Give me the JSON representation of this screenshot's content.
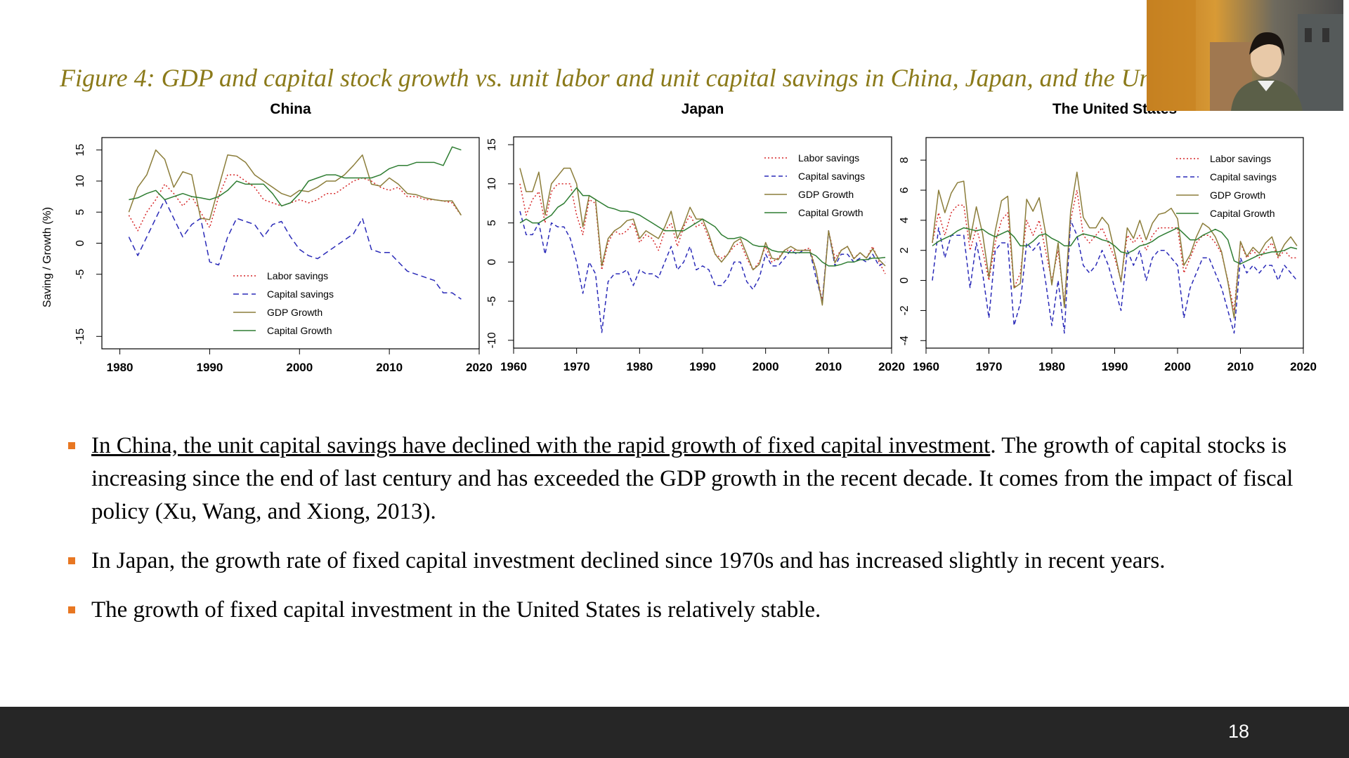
{
  "slide": {
    "title": "Figure 4: GDP and capital stock growth vs. unit labor and unit capital savings in China, Japan, and the Un",
    "page_number": "18",
    "title_color": "#8B7A1A",
    "bullet_color": "#E87722",
    "footer_color": "#262626"
  },
  "bullets": [
    {
      "underlined": "In China, the unit capital savings have declined with the rapid growth of fixed capital investment",
      "rest": ". The growth of capital stocks is increasing since the end of last century and has exceeded the GDP growth in the recent decade. It comes from the impact of fiscal policy (Xu, Wang, and Xiong, 2013)."
    },
    {
      "underlined": "",
      "rest": "In Japan, the growth rate of fixed capital investment declined since 1970s and has increased slightly in recent years."
    },
    {
      "underlined": "",
      "rest": "The growth of fixed capital investment in the United States is relatively stable."
    }
  ],
  "chart_data": [
    {
      "type": "line",
      "title": "China",
      "ylabel": "Saving / Growth (%)",
      "xlim": [
        1978,
        2020
      ],
      "ylim": [
        -17,
        17
      ],
      "xticks": [
        1980,
        1990,
        2000,
        2010,
        2020
      ],
      "yticks": [
        -15,
        -5,
        0,
        5,
        10,
        15
      ],
      "legend_position": "bottom-center",
      "x": [
        1981,
        1982,
        1983,
        1984,
        1985,
        1986,
        1987,
        1988,
        1989,
        1990,
        1991,
        1992,
        1993,
        1994,
        1995,
        1996,
        1997,
        1998,
        1999,
        2000,
        2001,
        2002,
        2003,
        2004,
        2005,
        2006,
        2007,
        2008,
        2009,
        2010,
        2011,
        2012,
        2013,
        2014,
        2015,
        2016,
        2017,
        2018
      ],
      "series": [
        {
          "name": "Labor savings",
          "color": "#d62728",
          "dash": "2,3",
          "values": [
            4.5,
            2,
            5,
            7,
            9.5,
            8,
            6,
            7.5,
            5,
            2.5,
            7.5,
            11,
            11,
            10,
            9,
            7,
            6.5,
            6,
            6.5,
            7,
            6.5,
            7,
            8,
            8,
            9,
            10,
            10.5,
            10,
            9,
            8.5,
            9,
            7.5,
            7.5,
            7,
            7,
            6.8,
            6.5,
            4.5
          ]
        },
        {
          "name": "Capital savings",
          "color": "#2a2ab8",
          "dash": "8,5",
          "values": [
            1,
            -2,
            1,
            4,
            7,
            4,
            1,
            3,
            4,
            -3,
            -3.5,
            1,
            4,
            3.5,
            3,
            1,
            3,
            3.5,
            1,
            -1,
            -2,
            -2.5,
            -1.5,
            -0.5,
            0.5,
            1.5,
            4,
            -1,
            -1.5,
            -1.5,
            -3,
            -4.5,
            -5,
            -5.5,
            -6,
            -8,
            -8,
            -9
          ]
        },
        {
          "name": "GDP Growth",
          "color": "#8B7D3A",
          "dash": "",
          "values": [
            5,
            9,
            11,
            15,
            13.5,
            9,
            11.5,
            11,
            4,
            3.8,
            9,
            14.2,
            14,
            13,
            11,
            10,
            9,
            8,
            7.5,
            8.5,
            8.3,
            9,
            10,
            10,
            11,
            12.5,
            14.2,
            9.5,
            9.2,
            10.5,
            9.5,
            8,
            7.8,
            7.3,
            7,
            6.8,
            6.8,
            4.5
          ]
        },
        {
          "name": "Capital Growth",
          "color": "#2e7d32",
          "dash": "",
          "values": [
            7,
            7.3,
            8,
            8.5,
            7,
            7.5,
            8,
            7.5,
            7.3,
            7,
            7.5,
            8.5,
            10,
            9.5,
            9.5,
            9.5,
            8,
            6,
            6.5,
            8,
            10,
            10.5,
            11,
            11,
            10.5,
            10.5,
            10.5,
            10.5,
            11,
            12,
            12.5,
            12.5,
            13,
            13,
            13,
            12.5,
            15.5,
            15
          ]
        }
      ]
    },
    {
      "type": "line",
      "title": "Japan",
      "xlim": [
        1960,
        2020
      ],
      "ylim": [
        -11,
        16
      ],
      "xticks": [
        1960,
        1970,
        1980,
        1990,
        2000,
        2010,
        2020
      ],
      "yticks": [
        -10,
        -5,
        0,
        5,
        10,
        15
      ],
      "legend_position": "top-right",
      "x": [
        1961,
        1962,
        1963,
        1964,
        1965,
        1966,
        1967,
        1968,
        1969,
        1970,
        1971,
        1972,
        1973,
        1974,
        1975,
        1976,
        1977,
        1978,
        1979,
        1980,
        1981,
        1982,
        1983,
        1984,
        1985,
        1986,
        1987,
        1988,
        1989,
        1990,
        1991,
        1992,
        1993,
        1994,
        1995,
        1996,
        1997,
        1998,
        1999,
        2000,
        2001,
        2002,
        2003,
        2004,
        2005,
        2006,
        2007,
        2008,
        2009,
        2010,
        2011,
        2012,
        2013,
        2014,
        2015,
        2016,
        2017,
        2018,
        2019
      ],
      "series": [
        {
          "name": "Labor savings",
          "color": "#d62728",
          "dash": "2,3",
          "values": [
            10,
            6,
            8,
            9,
            5,
            9,
            10,
            10,
            10,
            6,
            3.5,
            8,
            7.5,
            -1,
            2.5,
            4,
            3.5,
            4,
            5,
            2.5,
            3.5,
            3,
            1.5,
            4,
            5,
            2,
            4.5,
            6,
            4.5,
            5,
            3,
            1,
            0.5,
            1,
            2,
            2.5,
            0.5,
            -1,
            0,
            2,
            0,
            0.5,
            1.5,
            1.5,
            1.5,
            1.5,
            1.8,
            -1,
            -5,
            4,
            0.5,
            1.5,
            2,
            0.5,
            1.2,
            0.5,
            2,
            0,
            -1.5
          ]
        },
        {
          "name": "Capital savings",
          "color": "#2a2ab8",
          "dash": "6,4",
          "values": [
            6.5,
            3.5,
            3.5,
            5,
            1,
            5,
            4.5,
            4.5,
            3,
            0,
            -4,
            0,
            -1.5,
            -9,
            -2.5,
            -1.5,
            -1.5,
            -1,
            -3,
            -1,
            -1.5,
            -1.5,
            -2,
            0,
            2,
            -1,
            0,
            2,
            -1,
            -0.5,
            -1,
            -3,
            -3,
            -2,
            0,
            0,
            -2.5,
            -3.5,
            -2,
            1,
            -0.5,
            -0.5,
            0.5,
            1.5,
            1,
            1.5,
            1.5,
            -2,
            -5,
            4,
            -0.5,
            1,
            1,
            0,
            0.5,
            0,
            1,
            -0.5,
            0
          ]
        },
        {
          "name": "GDP Growth",
          "color": "#8B7D3A",
          "dash": "",
          "values": [
            12,
            9,
            9,
            11.5,
            6,
            10,
            11,
            12,
            12,
            10,
            4.5,
            8.5,
            8,
            -0.5,
            3,
            4,
            4.5,
            5.3,
            5.5,
            3,
            4,
            3.5,
            3,
            4.5,
            6.5,
            3,
            4.8,
            7,
            5.5,
            5.5,
            3.5,
            1,
            0,
            1,
            2.5,
            3,
            1,
            -1,
            -0.3,
            2.5,
            0.5,
            0.3,
            1.5,
            2,
            1.5,
            1.5,
            1.5,
            -1,
            -5.5,
            4,
            -0.1,
            1.5,
            2,
            0.4,
            1.2,
            0.5,
            1.7,
            0.3,
            -0.5
          ]
        },
        {
          "name": "Capital Growth",
          "color": "#2e7d32",
          "dash": "",
          "values": [
            5,
            5.5,
            5,
            5,
            5.5,
            6,
            7,
            7.5,
            8.5,
            9.5,
            8.5,
            8.5,
            8,
            7.5,
            7,
            6.8,
            6.5,
            6.5,
            6.3,
            6,
            5.5,
            5,
            4.5,
            4,
            4,
            4,
            4,
            4.5,
            5,
            5.5,
            5,
            4.5,
            3.5,
            3,
            3,
            3.2,
            2.8,
            2.2,
            2,
            2,
            1.5,
            1.3,
            1.3,
            1.2,
            1.2,
            1.2,
            1.2,
            0.8,
            0,
            -0.5,
            -0.5,
            -0.3,
            0,
            0,
            0.3,
            0.3,
            0.5,
            0.5,
            0.6
          ]
        }
      ]
    },
    {
      "type": "line",
      "title": "The United States",
      "xlim": [
        1960,
        2020
      ],
      "ylim": [
        -4.5,
        9.5
      ],
      "xticks": [
        1960,
        1970,
        1980,
        1990,
        2000,
        2010,
        2020
      ],
      "yticks": [
        -4,
        -2,
        0,
        2,
        4,
        6,
        8
      ],
      "legend_position": "top-right",
      "x": [
        1961,
        1962,
        1963,
        1964,
        1965,
        1966,
        1967,
        1968,
        1969,
        1970,
        1971,
        1972,
        1973,
        1974,
        1975,
        1976,
        1977,
        1978,
        1979,
        1980,
        1981,
        1982,
        1983,
        1984,
        1985,
        1986,
        1987,
        1988,
        1989,
        1990,
        1991,
        1992,
        1993,
        1994,
        1995,
        1996,
        1997,
        1998,
        1999,
        2000,
        2001,
        2002,
        2003,
        2004,
        2005,
        2006,
        2007,
        2008,
        2009,
        2010,
        2011,
        2012,
        2013,
        2014,
        2015,
        2016,
        2017,
        2018,
        2019
      ],
      "series": [
        {
          "name": "Labor savings",
          "color": "#d62728",
          "dash": "2,3",
          "values": [
            2.5,
            4.5,
            3,
            4.5,
            5,
            5,
            2,
            3.5,
            2,
            0,
            2.5,
            4,
            4.5,
            -0.5,
            0.5,
            4,
            3,
            4,
            2,
            0,
            2,
            -1.5,
            4,
            6,
            3,
            2.5,
            3,
            3.5,
            2.5,
            1.5,
            0,
            3,
            2.5,
            3,
            2,
            3,
            3.5,
            3.5,
            3.5,
            3.5,
            0.5,
            1.5,
            2.5,
            3,
            3,
            2.5,
            1.8,
            0,
            -2,
            2.5,
            1.5,
            2,
            1.5,
            2,
            2.5,
            1.5,
            2,
            1.5,
            1.5
          ]
        },
        {
          "name": "Capital savings",
          "color": "#2a2ab8",
          "dash": "6,4",
          "values": [
            0,
            3.5,
            1.5,
            3,
            3,
            3,
            -0.5,
            2.5,
            0.5,
            -2.5,
            2,
            2.5,
            2.5,
            -3,
            -1.5,
            2.5,
            2,
            2.5,
            0,
            -3,
            0,
            -3.5,
            4,
            3,
            1,
            0.5,
            1,
            2,
            1,
            -0.5,
            -2,
            2,
            1,
            2,
            0,
            1.5,
            2,
            2,
            1.5,
            1,
            -2.5,
            -0.5,
            0.5,
            1.5,
            1.5,
            0.5,
            -0.5,
            -2,
            -3.5,
            1.5,
            0.5,
            1,
            0.5,
            1,
            1,
            0,
            1,
            0.5,
            0
          ]
        },
        {
          "name": "GDP Growth",
          "color": "#8B7D3A",
          "dash": "",
          "values": [
            2.5,
            6,
            4.5,
            5.8,
            6.5,
            6.6,
            2.7,
            4.9,
            3.1,
            0.2,
            3.3,
            5.3,
            5.6,
            -0.5,
            -0.2,
            5.4,
            4.6,
            5.5,
            3.2,
            -0.3,
            2.5,
            -1.8,
            4.6,
            7.2,
            4.2,
            3.5,
            3.5,
            4.2,
            3.7,
            1.9,
            -0.1,
            3.5,
            2.8,
            4,
            2.7,
            3.8,
            4.4,
            4.5,
            4.8,
            4.1,
            1,
            1.7,
            2.9,
            3.8,
            3.5,
            2.9,
            1.9,
            -0.1,
            -2.5,
            2.6,
            1.6,
            2.2,
            1.8,
            2.5,
            2.9,
            1.6,
            2.4,
            2.9,
            2.3
          ]
        },
        {
          "name": "Capital Growth",
          "color": "#2e7d32",
          "dash": "",
          "values": [
            2.3,
            2.6,
            2.8,
            3,
            3.3,
            3.5,
            3.4,
            3.3,
            3.4,
            3.1,
            2.9,
            3.1,
            3.3,
            2.9,
            2.3,
            2.3,
            2.6,
            3,
            3.1,
            2.8,
            2.6,
            2.3,
            2.3,
            2.9,
            3.1,
            3,
            2.9,
            2.7,
            2.6,
            2.3,
            1.9,
            1.8,
            2,
            2.3,
            2.4,
            2.6,
            2.9,
            3.1,
            3.3,
            3.5,
            3.1,
            2.7,
            2.7,
            3,
            3.2,
            3.4,
            3.2,
            2.7,
            1.3,
            1.1,
            1.3,
            1.5,
            1.7,
            1.8,
            1.9,
            1.9,
            2,
            2.2,
            2.1
          ]
        }
      ]
    }
  ]
}
